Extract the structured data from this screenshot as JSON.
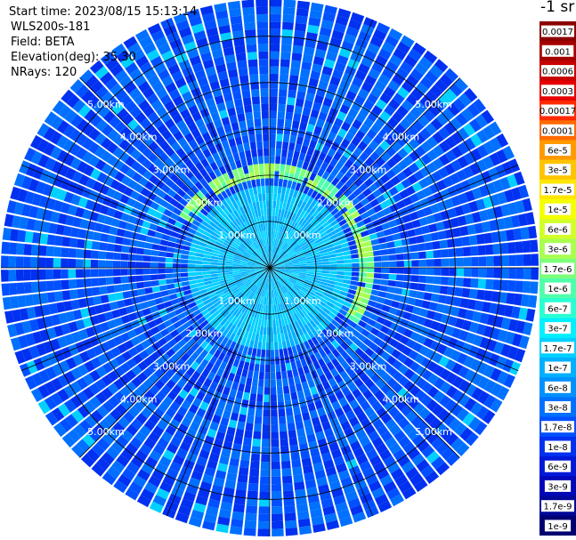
{
  "header": {
    "start_time": "Start time: 2023/08/15 15:13:14",
    "device": "WLS200s-181",
    "field": "Field: BETA",
    "elevation": "Elevation(deg): 35.30",
    "nrays": "NRays: 120"
  },
  "colorbar": {
    "unit_label": "-1 sr",
    "ticks": [
      {
        "label": "0.0017",
        "color": "#8b0000"
      },
      {
        "label": "0.001",
        "color": "#a50000"
      },
      {
        "label": "0.0006",
        "color": "#c80000"
      },
      {
        "label": "0.0003",
        "color": "#e60000"
      },
      {
        "label": "0.00017",
        "color": "#ff2a00"
      },
      {
        "label": "0.0001",
        "color": "#ff6a00"
      },
      {
        "label": "6e-5",
        "color": "#ff9a00"
      },
      {
        "label": "3e-5",
        "color": "#ffc400"
      },
      {
        "label": "1.7e-5",
        "color": "#ffe600"
      },
      {
        "label": "1e-5",
        "color": "#f4ff00"
      },
      {
        "label": "6e-6",
        "color": "#d2ff2a"
      },
      {
        "label": "3e-6",
        "color": "#a8ff50"
      },
      {
        "label": "1.7e-6",
        "color": "#7cff7a"
      },
      {
        "label": "1e-6",
        "color": "#50ffaa"
      },
      {
        "label": "6e-7",
        "color": "#2affd2"
      },
      {
        "label": "3e-7",
        "color": "#00f0ff"
      },
      {
        "label": "1.7e-7",
        "color": "#00d0ff"
      },
      {
        "label": "1e-7",
        "color": "#00b0ff"
      },
      {
        "label": "6e-8",
        "color": "#0090ff"
      },
      {
        "label": "3e-8",
        "color": "#0070ff"
      },
      {
        "label": "1.7e-8",
        "color": "#0050ff"
      },
      {
        "label": "1e-8",
        "color": "#0030f0"
      },
      {
        "label": "6e-9",
        "color": "#0018d8"
      },
      {
        "label": "3e-9",
        "color": "#0008b8"
      },
      {
        "label": "1.7e-9",
        "color": "#000898"
      },
      {
        "label": "1e-9",
        "color": "#000070"
      }
    ]
  },
  "chart_data": {
    "type": "heatmap",
    "projection": "polar-ppi",
    "field": "BETA",
    "n_rays": 120,
    "range_unit": "km",
    "range_max_km": 5.8,
    "range_rings_km": [
      1,
      2,
      3,
      4,
      5
    ],
    "range_labels": [
      "1.00km",
      "2.00km",
      "3.00km",
      "4.00km",
      "5.00km"
    ],
    "label_azimuths_deg": [
      315,
      45,
      135,
      225
    ],
    "radial_gridlines_deg": [
      0,
      22.5,
      45,
      67.5,
      90,
      112.5,
      135,
      157.5,
      180,
      202.5,
      225,
      247.5,
      270,
      292.5,
      315,
      337.5
    ],
    "features": [
      {
        "description": "enhanced backscatter ring",
        "range_km": [
          2.0,
          2.3
        ],
        "value_level": "3e-6",
        "azimuths_deg": [
          300,
          120
        ]
      }
    ],
    "background_value_range": [
      "6e-9",
      "6e-8"
    ],
    "near_range_value_range": [
      "6e-8",
      "3e-7"
    ],
    "color_scale": "log",
    "value_range": [
      "1e-9",
      "0.0017"
    ]
  }
}
